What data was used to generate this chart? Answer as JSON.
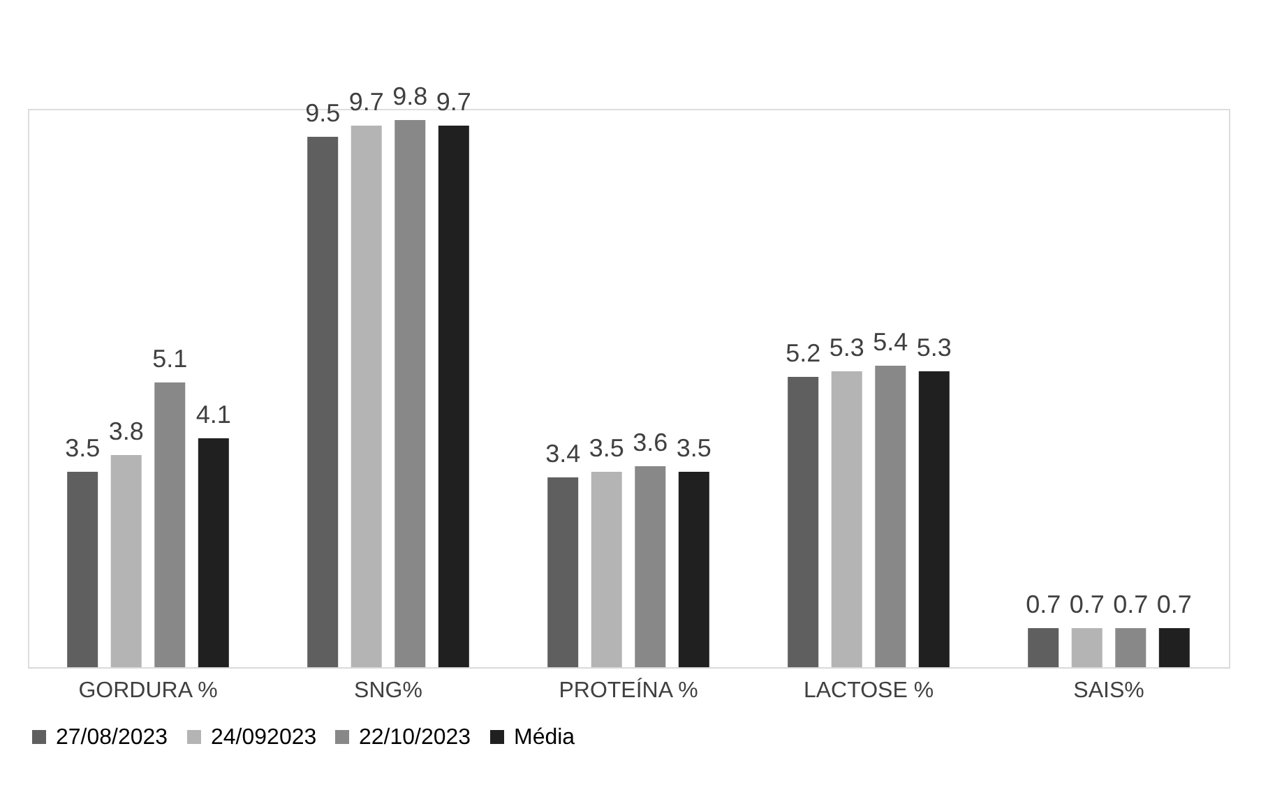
{
  "chart_data": {
    "type": "bar",
    "categories": [
      "GORDURA %",
      "SNG%",
      "PROTEÍNA %",
      "LACTOSE %",
      "SAIS%"
    ],
    "series": [
      {
        "name": "27/08/2023",
        "color": "#5f5f5f",
        "values": [
          3.5,
          9.5,
          3.4,
          5.2,
          0.7
        ]
      },
      {
        "name": "24/092023",
        "color": "#b4b4b4",
        "values": [
          3.8,
          9.7,
          3.5,
          5.3,
          0.7
        ]
      },
      {
        "name": "22/10/2023",
        "color": "#888888",
        "values": [
          5.1,
          9.8,
          3.6,
          5.4,
          0.7
        ]
      },
      {
        "name": "Média",
        "color": "#202020",
        "values": [
          4.1,
          9.7,
          3.5,
          5.3,
          0.7
        ]
      }
    ],
    "data_labels": true,
    "legend": "bottom"
  }
}
